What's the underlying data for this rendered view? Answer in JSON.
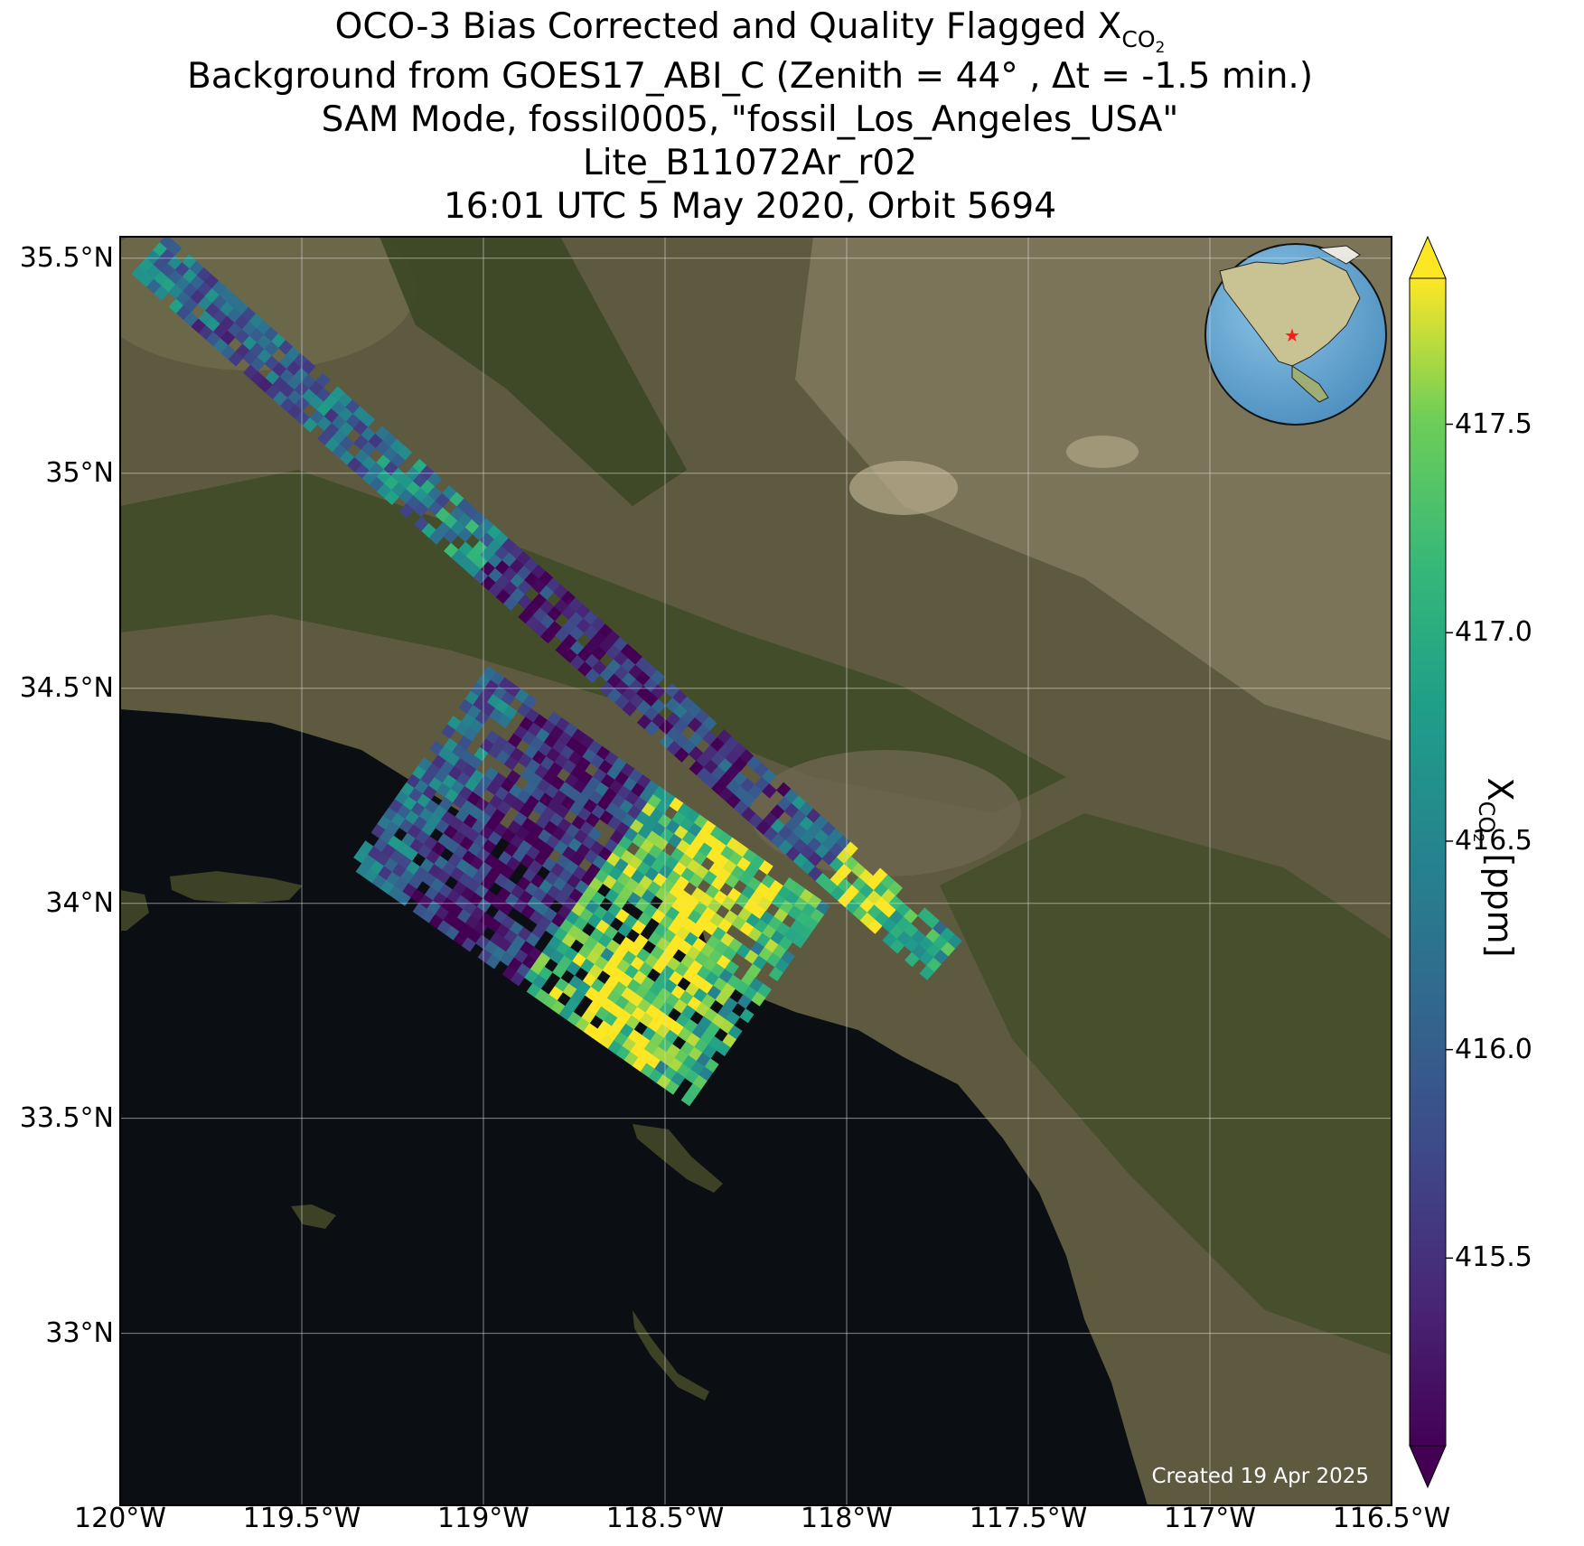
{
  "title": {
    "line1_prefix": "OCO-3 Bias Corrected and Quality Flagged X",
    "line1_sub": "CO",
    "line1_subsub": "2",
    "line2": "Background from GOES17_ABI_C (Zenith = 44° , Δt = -1.5 min.)",
    "line3": "SAM Mode, fossil0005, \"fossil_Los_Angeles_USA\"",
    "line4": "Lite_B11072Ar_r02",
    "line5": "16:01 UTC 5 May 2020, Orbit 5694"
  },
  "map": {
    "lon_range": [
      -120.0,
      -116.5
    ],
    "lat_range": [
      32.6,
      35.55
    ],
    "lat_ticks": [
      {
        "value": 35.5,
        "label": "35.5°N"
      },
      {
        "value": 35.0,
        "label": "35°N"
      },
      {
        "value": 34.5,
        "label": "34.5°N"
      },
      {
        "value": 34.0,
        "label": "34°N"
      },
      {
        "value": 33.5,
        "label": "33.5°N"
      },
      {
        "value": 33.0,
        "label": "33°N"
      }
    ],
    "lon_ticks": [
      {
        "value": -120.0,
        "label": "120°W"
      },
      {
        "value": -119.5,
        "label": "119.5°W"
      },
      {
        "value": -119.0,
        "label": "119°W"
      },
      {
        "value": -118.5,
        "label": "118.5°W"
      },
      {
        "value": -118.0,
        "label": "118°W"
      },
      {
        "value": -117.5,
        "label": "117.5°W"
      },
      {
        "value": -117.0,
        "label": "117°W"
      },
      {
        "value": -116.5,
        "label": "116.5°W"
      }
    ],
    "gridlines": true,
    "background": "satellite-imagery",
    "colors": {
      "land": "#5d5a3f",
      "ocean": "#0b0e13",
      "mountains": "#3f4a26",
      "desert": "#8a8064"
    },
    "inset": {
      "type": "globe",
      "marker": "red-star-icon",
      "ocean_color": "#6aaed6"
    },
    "created_text": "Created 19 Apr 2025"
  },
  "colorbar": {
    "colormap": "viridis",
    "range": [
      415.05,
      417.85
    ],
    "extend": "both",
    "ticks": [
      {
        "value": 415.5,
        "label": "415.5"
      },
      {
        "value": 416.0,
        "label": "416.0"
      },
      {
        "value": 416.5,
        "label": "416.5"
      },
      {
        "value": 417.0,
        "label": "417.0"
      },
      {
        "value": 417.5,
        "label": "417.5"
      }
    ],
    "label_prefix": "X",
    "label_sub": "CO",
    "label_subsub": "2",
    "label_suffix": " [ppm]"
  },
  "chart_data": {
    "type": "heatmap",
    "xlabel": "",
    "ylabel": "",
    "value_range": [
      415.05,
      417.85
    ],
    "swaths": [
      {
        "lon_start": -119.92,
        "lat_start": 35.51,
        "lon_end": -117.72,
        "lat_end": 33.86,
        "width_deg": 0.09,
        "mean_values": [
          416.2,
          416.0,
          415.9,
          416.1,
          416.3,
          416.6,
          415.6,
          415.3,
          415.4,
          415.6,
          415.7,
          416.1,
          417.6,
          416.8
        ]
      },
      {
        "lon_start": -119.18,
        "lat_start": 34.32,
        "lon_end": -118.22,
        "lat_end": 33.75,
        "width_deg": 0.42,
        "mean_values": [
          416.1,
          415.5,
          415.3,
          415.6,
          417.2,
          417.8,
          417.5,
          417.0
        ]
      }
    ]
  }
}
